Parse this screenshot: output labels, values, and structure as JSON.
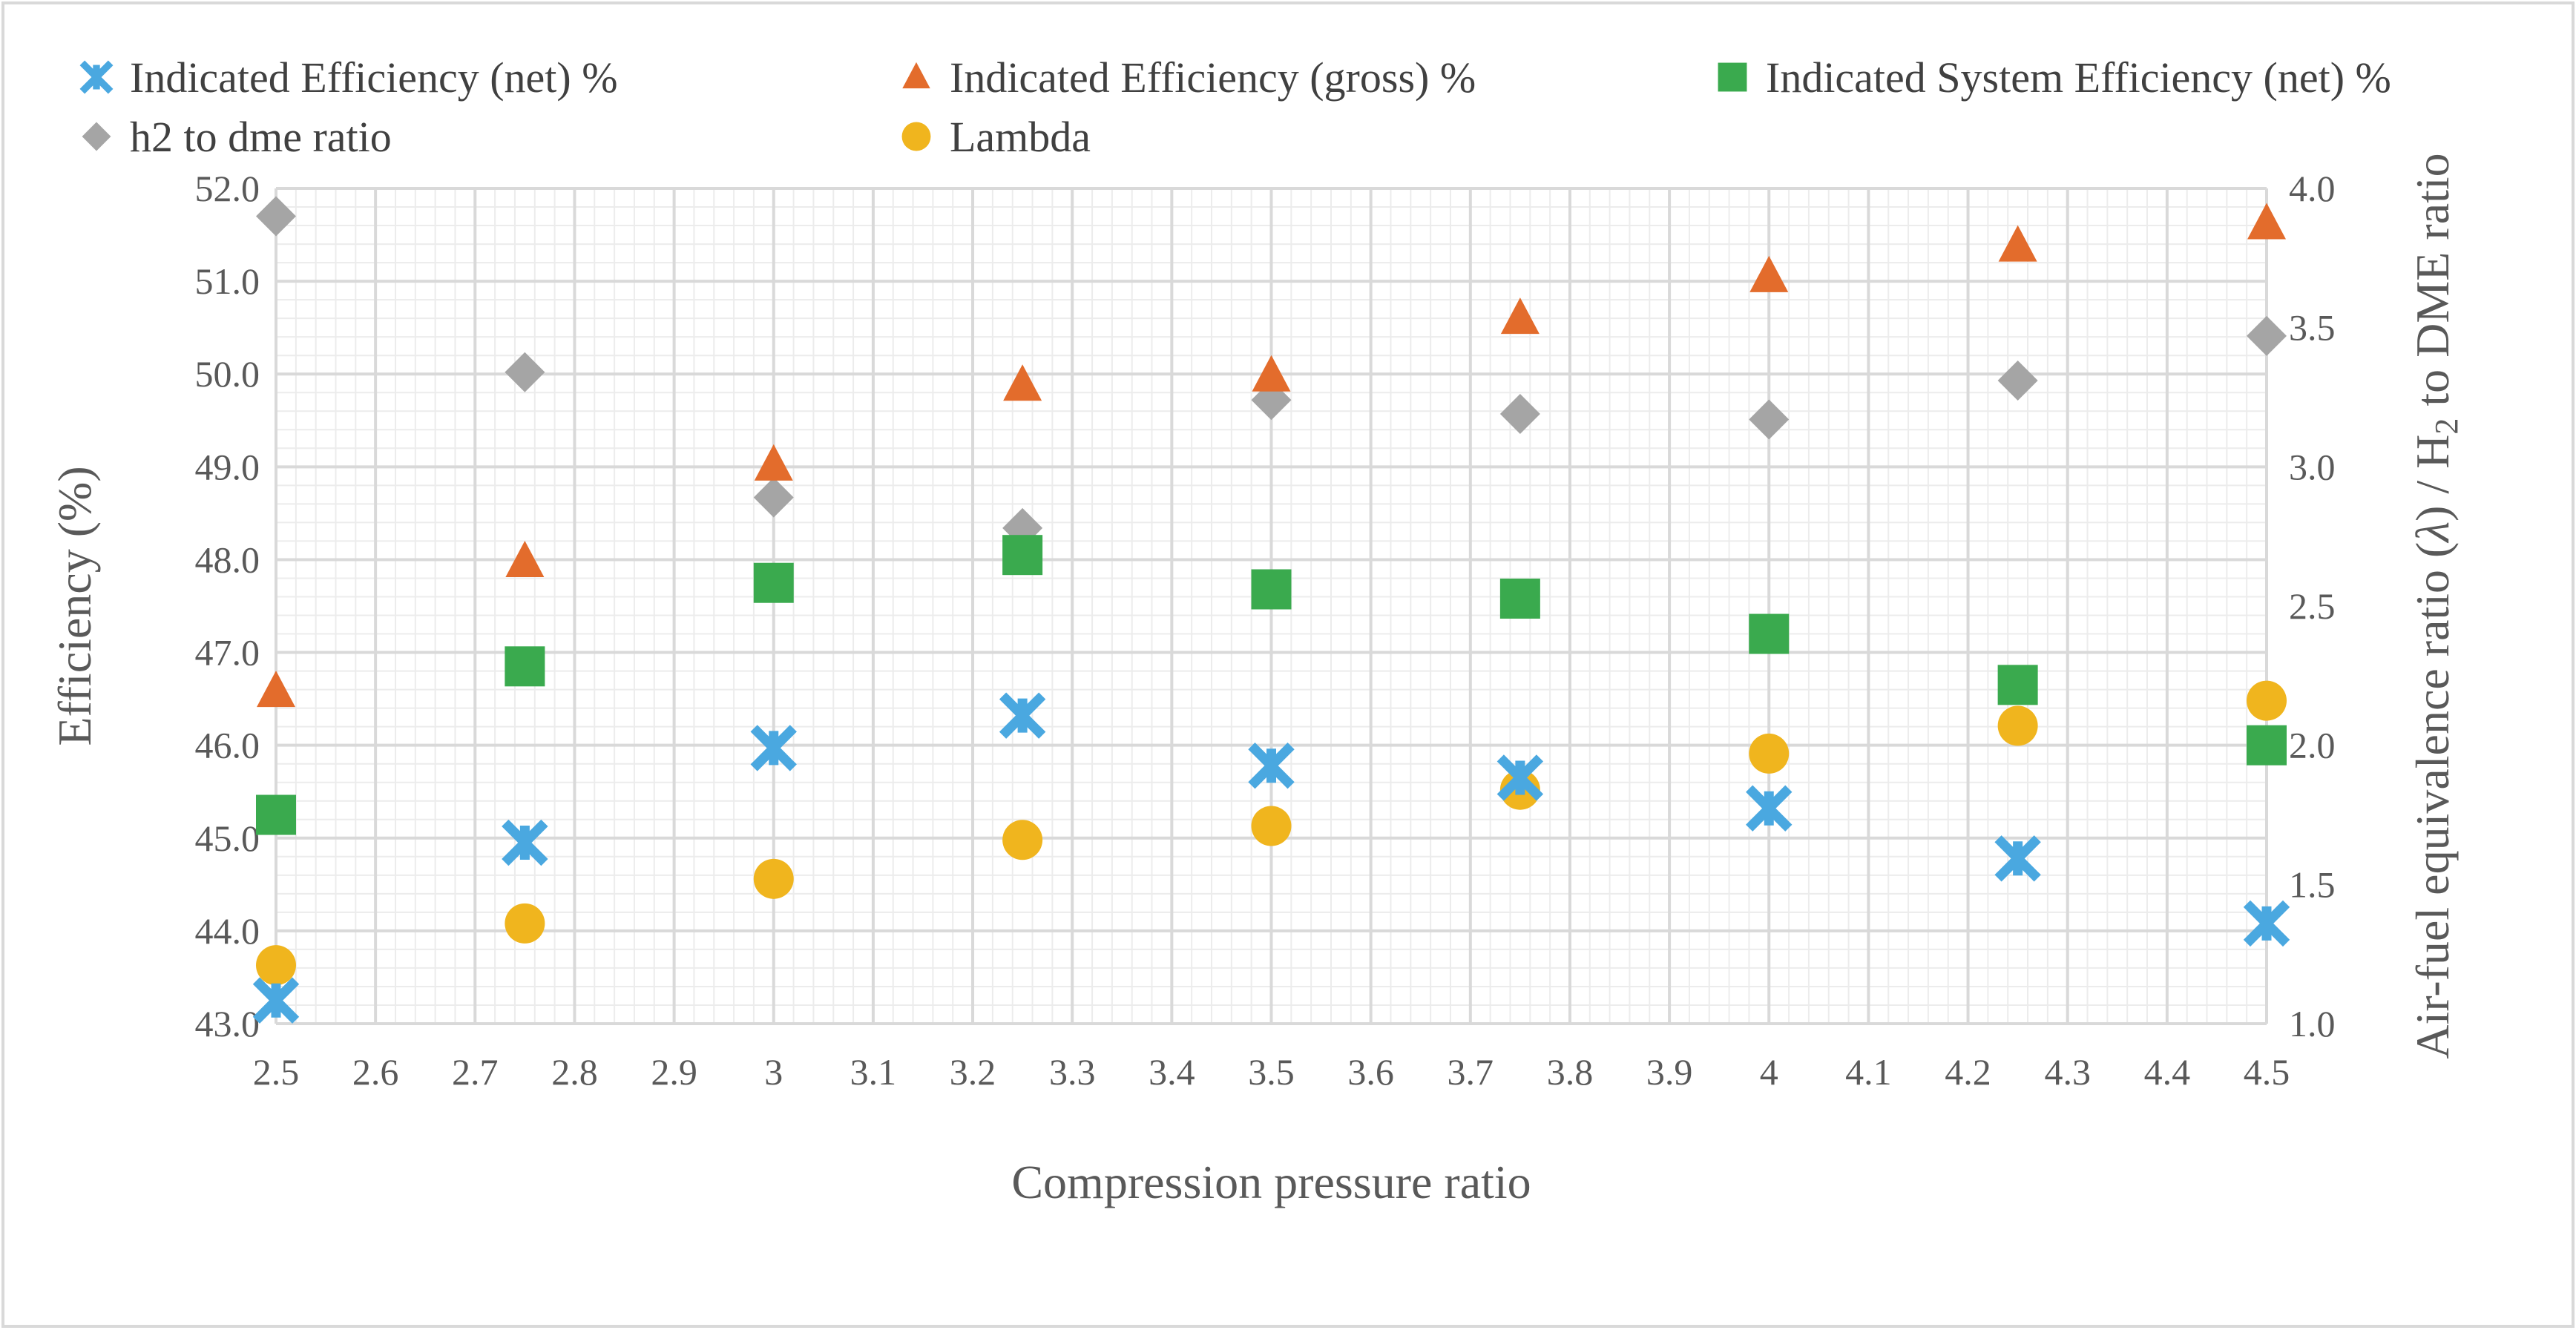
{
  "chart_data": {
    "type": "scatter",
    "title": "",
    "xlabel": "Compression pressure ratio",
    "ylabel": "Efficiency (%)",
    "y2label_parts": [
      "Air-fuel equivalence ratio (",
      "λ",
      ") / H",
      "2",
      " to DME ratio"
    ],
    "x_ticks": [
      "2.5",
      "2.6",
      "2.7",
      "2.8",
      "2.9",
      "3",
      "3.1",
      "3.2",
      "3.3",
      "3.4",
      "3.5",
      "3.6",
      "3.7",
      "3.8",
      "3.9",
      "4",
      "4.1",
      "4.2",
      "4.3",
      "4.4",
      "4.5"
    ],
    "y_ticks": [
      "43.0",
      "44.0",
      "45.0",
      "46.0",
      "47.0",
      "48.0",
      "49.0",
      "50.0",
      "51.0",
      "52.0"
    ],
    "y2_ticks": [
      "1.0",
      "1.5",
      "2.0",
      "2.5",
      "3.0",
      "3.5",
      "4.0"
    ],
    "xlim": [
      2.5,
      4.5
    ],
    "ylim": [
      43.0,
      52.0
    ],
    "y2lim": [
      1.0,
      4.0
    ],
    "grid": true,
    "legend_position": "top",
    "x": [
      2.5,
      2.75,
      3.0,
      3.25,
      3.5,
      3.75,
      4.0,
      4.25,
      4.5
    ],
    "series": [
      {
        "name": "Indicated Efficiency (net) %",
        "axis": "left",
        "marker": "x",
        "color": "#4aa8e0",
        "values": [
          43.25,
          44.95,
          45.97,
          46.32,
          45.78,
          45.65,
          45.32,
          44.78,
          44.08
        ]
      },
      {
        "name": "Indicated Efficiency (gross) %",
        "axis": "left",
        "marker": "triangle",
        "color": "#e36c2c",
        "values": [
          46.58,
          47.98,
          49.02,
          49.88,
          49.98,
          50.6,
          51.05,
          51.38,
          51.62
        ]
      },
      {
        "name": "Indicated System Efficiency (net) %",
        "axis": "left",
        "marker": "square",
        "color": "#3aaa4e",
        "values": [
          45.25,
          46.85,
          47.75,
          48.05,
          47.68,
          47.58,
          47.2,
          46.65,
          46.0
        ]
      },
      {
        "name": "h2 to dme ratio",
        "axis": "right",
        "marker": "diamond",
        "color": "#a5a5a5",
        "values": [
          3.9,
          3.34,
          2.89,
          2.78,
          3.24,
          3.19,
          3.17,
          3.31,
          3.47
        ]
      },
      {
        "name": "Lambda",
        "axis": "right",
        "marker": "circle",
        "color": "#f0b51e",
        "values": [
          1.21,
          1.36,
          1.52,
          1.66,
          1.71,
          1.84,
          1.97,
          2.07,
          2.16
        ]
      }
    ]
  }
}
